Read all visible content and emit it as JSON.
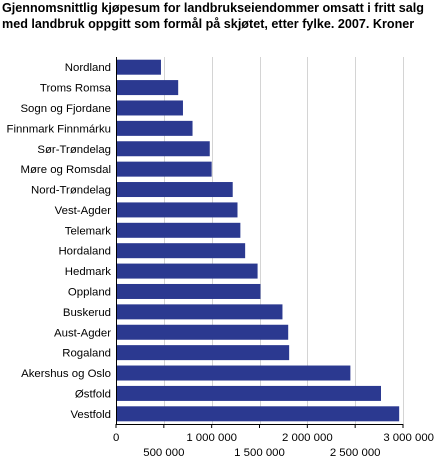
{
  "chart_data": {
    "type": "bar",
    "orientation": "horizontal",
    "title": "Gjennomsnittlig kjøpesum for landbrukseiendommer omsatt i fritt salg med landbruk oppgitt som formål på skjøtet, etter fylke. 2007. Kroner",
    "xlabel": "",
    "ylabel": "",
    "xlim": [
      0,
      3000000
    ],
    "ticks": [
      0,
      500000,
      1000000,
      1500000,
      2000000,
      2500000,
      3000000
    ],
    "tick_labels": [
      "0",
      "500 000",
      "1 000 000",
      "1 500 000",
      "2 000 000",
      "2 500 000",
      "3 000 000"
    ],
    "grid": "vertical",
    "bar_color": "#2b3990",
    "categories": [
      "Nordland",
      "Troms Romsa",
      "Sogn og Fjordane",
      "Finnmark Finnmárku",
      "Sør-Trøndelag",
      "Møre og Romsdal",
      "Nord-Trøndelag",
      "Vest-Agder",
      "Telemark",
      "Hordaland",
      "Hedmark",
      "Oppland",
      "Buskerud",
      "Aust-Agder",
      "Rogaland",
      "Akershus og Oslo",
      "Østfold",
      "Vestfold"
    ],
    "values": [
      470000,
      650000,
      700000,
      800000,
      980000,
      1000000,
      1220000,
      1270000,
      1300000,
      1350000,
      1480000,
      1510000,
      1740000,
      1800000,
      1810000,
      2450000,
      2770000,
      2960000
    ]
  }
}
